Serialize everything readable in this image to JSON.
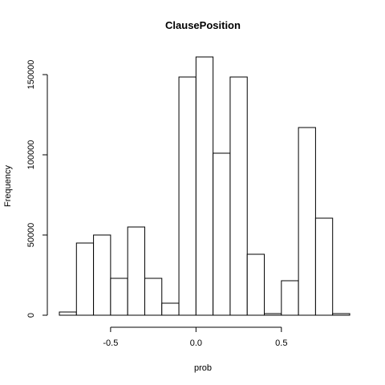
{
  "chart_data": {
    "type": "bar",
    "title": "ClausePosition",
    "xlabel": "prob",
    "ylabel": "Frequency",
    "bins": [
      {
        "x0": -0.8,
        "x1": -0.7,
        "value": 2000
      },
      {
        "x0": -0.7,
        "x1": -0.6,
        "value": 45000
      },
      {
        "x0": -0.6,
        "x1": -0.5,
        "value": 50000
      },
      {
        "x0": -0.5,
        "x1": -0.4,
        "value": 23000
      },
      {
        "x0": -0.4,
        "x1": -0.3,
        "value": 55000
      },
      {
        "x0": -0.3,
        "x1": -0.2,
        "value": 23000
      },
      {
        "x0": -0.2,
        "x1": -0.1,
        "value": 7500
      },
      {
        "x0": -0.1,
        "x1": 0.0,
        "value": 148500
      },
      {
        "x0": 0.0,
        "x1": 0.1,
        "value": 161000
      },
      {
        "x0": 0.1,
        "x1": 0.2,
        "value": 101000
      },
      {
        "x0": 0.2,
        "x1": 0.3,
        "value": 148500
      },
      {
        "x0": 0.3,
        "x1": 0.4,
        "value": 38000
      },
      {
        "x0": 0.4,
        "x1": 0.5,
        "value": 1000
      },
      {
        "x0": 0.5,
        "x1": 0.6,
        "value": 21500
      },
      {
        "x0": 0.6,
        "x1": 0.7,
        "value": 117000
      },
      {
        "x0": 0.7,
        "x1": 0.8,
        "value": 60500
      },
      {
        "x0": 0.8,
        "x1": 0.9,
        "value": 1000
      }
    ],
    "xlim": [
      -0.8,
      0.9
    ],
    "ylim": [
      0,
      161000
    ],
    "xticks": [
      -0.5,
      0.0,
      0.5
    ],
    "xtick_labels": [
      "-0.5",
      "0.0",
      "0.5"
    ],
    "yticks": [
      0,
      50000,
      100000,
      150000
    ],
    "ytick_labels": [
      "0",
      "50000",
      "100000",
      "150000"
    ],
    "grid": false,
    "legend": "none",
    "bar_fill": "#ffffff",
    "bar_stroke": "#000000"
  }
}
